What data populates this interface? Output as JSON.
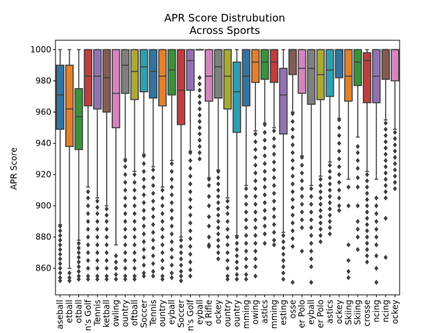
{
  "chart_data": {
    "type": "box",
    "title": [
      "APR Score Distrubution",
      "Across Sports"
    ],
    "xlabel": "",
    "ylabel": "APR Score",
    "ylim": [
      843,
      1006
    ],
    "yticks": [
      860,
      880,
      900,
      920,
      940,
      960,
      980,
      1000
    ],
    "grid": false,
    "categories": [
      {
        "label": "aseball",
        "color": "#3274a1",
        "q1": 949,
        "median": 971,
        "q3": 990,
        "whisker_low": 888,
        "whisker_high": 1000,
        "outliers": [
          887,
          884,
          881,
          878,
          875,
          872,
          869,
          866,
          863,
          860,
          857,
          854,
          852
        ]
      },
      {
        "label": "etball",
        "color": "#e1812c",
        "q1": 938,
        "median": 962,
        "q3": 990,
        "whisker_low": 860,
        "whisker_high": 1000,
        "outliers": [
          857,
          854,
          852
        ]
      },
      {
        "label": "otball",
        "color": "#3a923a",
        "q1": 936,
        "median": 957,
        "q3": 975,
        "whisker_low": 878,
        "whisker_high": 1000,
        "outliers": [
          876,
          873,
          870,
          867,
          864,
          861,
          858,
          855,
          853
        ]
      },
      {
        "label": "n's Golf",
        "color": "#c03d3e",
        "q1": 964,
        "median": 983,
        "q3": 1000,
        "whisker_low": 912,
        "whisker_high": 1000,
        "outliers": [
          909,
          905,
          900,
          895,
          890,
          885,
          880,
          875,
          870,
          865,
          860,
          855,
          853
        ]
      },
      {
        "label": "Tennis",
        "color": "#9372b2",
        "q1": 962,
        "median": 983,
        "q3": 1000,
        "whisker_low": 905,
        "whisker_high": 1000,
        "outliers": [
          903,
          899,
          895,
          890,
          885,
          880,
          875,
          870,
          865,
          860,
          855,
          853
        ]
      },
      {
        "label": "ketball",
        "color": "#845b53",
        "q1": 960,
        "median": 982,
        "q3": 1000,
        "whisker_low": 900,
        "whisker_high": 1000,
        "outliers": [
          898,
          894,
          890,
          885,
          880,
          875,
          870,
          865,
          860,
          855,
          853
        ]
      },
      {
        "label": "owling",
        "color": "#d684bd",
        "q1": 950,
        "median": 972,
        "q3": 1000,
        "whisker_low": 875,
        "whisker_high": 1000,
        "outliers": [
          868,
          864,
          860,
          856,
          853
        ]
      },
      {
        "label": "ountry",
        "color": "#7f7f7f",
        "q1": 972,
        "median": 990,
        "q3": 1000,
        "whisker_low": 930,
        "whisker_high": 1000,
        "outliers": [
          929,
          925,
          920,
          915,
          910,
          905,
          900,
          895,
          890,
          885,
          880,
          875,
          870,
          865,
          860,
          855,
          853
        ]
      },
      {
        "label": "oftball",
        "color": "#a9aa35",
        "q1": 968,
        "median": 986,
        "q3": 1000,
        "whisker_low": 922,
        "whisker_high": 1000,
        "outliers": [
          920,
          915,
          910,
          905,
          900,
          895,
          890,
          885,
          880,
          875,
          870,
          865,
          860,
          855,
          853
        ]
      },
      {
        "label": "Soccer",
        "color": "#2e9fb0",
        "q1": 973,
        "median": 989,
        "q3": 1000,
        "whisker_low": 933,
        "whisker_high": 1000,
        "outliers": [
          932,
          927,
          922,
          917,
          912,
          907,
          902,
          897,
          892,
          887,
          882,
          877,
          872,
          867,
          862,
          857,
          855
        ]
      },
      {
        "label": "Tennis",
        "color": "#3274a1",
        "q1": 969,
        "median": 986,
        "q3": 1000,
        "whisker_low": 925,
        "whisker_high": 1000,
        "outliers": [
          923,
          918,
          913,
          908,
          903,
          898,
          893,
          888,
          883,
          878,
          873,
          868,
          863,
          858,
          855
        ]
      },
      {
        "label": "ountry",
        "color": "#e1812c",
        "q1": 964,
        "median": 983,
        "q3": 1000,
        "whisker_low": 912,
        "whisker_high": 1000,
        "outliers": [
          910,
          905,
          900,
          895,
          890,
          885,
          880,
          875,
          870,
          865,
          860,
          855,
          853
        ]
      },
      {
        "label": "eyball",
        "color": "#3a923a",
        "q1": 971,
        "median": 987,
        "q3": 1000,
        "whisker_low": 929,
        "whisker_high": 1000,
        "outliers": [
          927,
          922,
          917,
          912,
          907,
          902,
          897,
          892,
          887,
          882,
          877,
          872,
          867,
          862,
          857,
          854
        ]
      },
      {
        "label": "Soccer",
        "color": "#c03d3e",
        "q1": 952,
        "median": 974,
        "q3": 1000,
        "whisker_low": 880,
        "whisker_high": 1000,
        "outliers": [
          878,
          874,
          870,
          866,
          862,
          858,
          855,
          852
        ]
      },
      {
        "label": "n's Golf",
        "color": "#9372b2",
        "q1": 974,
        "median": 993,
        "q3": 1000,
        "whisker_low": 935,
        "whisker_high": 1000,
        "outliers": [
          934,
          929,
          924,
          919,
          914,
          909,
          904,
          899,
          894,
          889,
          884,
          879,
          874,
          869,
          864,
          859,
          855
        ]
      },
      {
        "label": "eyball",
        "color": "#845b53",
        "q1": 1000,
        "median": 1000,
        "q3": 1000,
        "whisker_low": 1000,
        "whisker_high": 1000,
        "outliers": [
          982,
          978,
          974,
          970,
          966,
          962,
          958,
          954,
          950,
          946,
          942,
          938,
          934,
          930
        ]
      },
      {
        "label": "d Rifle",
        "color": "#d684bd",
        "q1": 967,
        "median": 983,
        "q3": 1000,
        "whisker_low": 918,
        "whisker_high": 1000,
        "outliers": [
          917,
          913,
          906,
          900,
          893,
          887,
          880,
          875,
          874
        ]
      },
      {
        "label": "ockey",
        "color": "#7f7f7f",
        "q1": 969,
        "median": 989,
        "q3": 1000,
        "whisker_low": 923,
        "whisker_high": 1000,
        "outliers": [
          922,
          918,
          914,
          910,
          906,
          902,
          898,
          894,
          890,
          886,
          882,
          878,
          874,
          870,
          866
        ]
      },
      {
        "label": "ountry",
        "color": "#a9aa35",
        "q1": 962,
        "median": 983,
        "q3": 1000,
        "whisker_low": 905,
        "whisker_high": 1000,
        "outliers": [
          903,
          899,
          895,
          890,
          885,
          880,
          875,
          870,
          865,
          860,
          855,
          853
        ]
      },
      {
        "label": "ountry",
        "color": "#2e9fb0",
        "q1": 947,
        "median": 973,
        "q3": 992,
        "whisker_low": 881,
        "whisker_high": 1000,
        "outliers": [
          880,
          876,
          872,
          868,
          864,
          860,
          856,
          853
        ]
      },
      {
        "label": "mming",
        "color": "#3274a1",
        "q1": 964,
        "median": 983,
        "q3": 1000,
        "whisker_low": 913,
        "whisker_high": 1000,
        "outliers": [
          911,
          906,
          901,
          896,
          891,
          886,
          881,
          876,
          871,
          866,
          861,
          856,
          853
        ]
      },
      {
        "label": "owing",
        "color": "#e1812c",
        "q1": 979,
        "median": 992,
        "q3": 1000,
        "whisker_low": 948,
        "whisker_high": 1000,
        "outliers": [
          946,
          941,
          936,
          931,
          926,
          921,
          916,
          911,
          906,
          901,
          896,
          891,
          886,
          881,
          876,
          871,
          866,
          861,
          855
        ]
      },
      {
        "label": "astics",
        "color": "#3a923a",
        "q1": 981,
        "median": 992,
        "q3": 1000,
        "whisker_low": 953,
        "whisker_high": 1000,
        "outliers": [
          952,
          947,
          942,
          937,
          932,
          927,
          922,
          917,
          912,
          907,
          902,
          897,
          892,
          887,
          882,
          876
        ]
      },
      {
        "label": "mming",
        "color": "#c03d3e",
        "q1": 979,
        "median": 992,
        "q3": 1000,
        "whisker_low": 950,
        "whisker_high": 1000,
        "outliers": [
          948,
          943,
          938,
          933,
          928,
          923,
          918,
          913,
          908,
          903,
          898,
          893,
          888,
          883,
          878,
          875
        ]
      },
      {
        "label": "esting",
        "color": "#9372b2",
        "q1": 946,
        "median": 971,
        "q3": 988,
        "whisker_low": 883,
        "whisker_high": 1000,
        "outliers": [
          881,
          877,
          873,
          869,
          865,
          861,
          857,
          853
        ]
      },
      {
        "label": "osse",
        "color": "#845b53",
        "q1": 984,
        "median": 1000,
        "q3": 1000,
        "whisker_low": 960,
        "whisker_high": 1000,
        "outliers": [
          959,
          954,
          949,
          944,
          939,
          934,
          929,
          924,
          919,
          914,
          909,
          904,
          899,
          894,
          889,
          884,
          879,
          874,
          851
        ]
      },
      {
        "label": "er Polo",
        "color": "#d684bd",
        "q1": 972,
        "median": 988,
        "q3": 1000,
        "whisker_low": 932,
        "whisker_high": 1000,
        "outliers": [
          931,
          926,
          921,
          916,
          911,
          906,
          901,
          896,
          891,
          886,
          871
        ]
      },
      {
        "label": "eyball",
        "color": "#7f7f7f",
        "q1": 965,
        "median": 988,
        "q3": 1000,
        "whisker_low": 913,
        "whisker_high": 1000,
        "outliers": [
          911,
          906,
          901,
          896,
          891,
          886,
          881,
          876,
          871,
          866,
          861,
          851
        ]
      },
      {
        "label": "er Polo",
        "color": "#a9aa35",
        "q1": 968,
        "median": 984,
        "q3": 1000,
        "whisker_low": 919,
        "whisker_high": 1000,
        "outliers": [
          917,
          913,
          909,
          905,
          901,
          897,
          893,
          889,
          885,
          881,
          877
        ]
      },
      {
        "label": "astics",
        "color": "#2e9fb0",
        "q1": 970,
        "median": 987,
        "q3": 1000,
        "whisker_low": 928,
        "whisker_high": 1000,
        "outliers": [
          926,
          922,
          918,
          914,
          910,
          906,
          902,
          898,
          894,
          890,
          886,
          882
        ]
      },
      {
        "label": "ockey",
        "color": "#3274a1",
        "q1": 982,
        "median": 1000,
        "q3": 1000,
        "whisker_low": 956,
        "whisker_high": 1000,
        "outliers": [
          955,
          950,
          945,
          940,
          935,
          930,
          925,
          920,
          915,
          910,
          905,
          900,
          897
        ]
      },
      {
        "label": "Skiing",
        "color": "#e1812c",
        "q1": 967,
        "median": 983,
        "q3": 1000,
        "whisker_low": 917,
        "whisker_high": 1000,
        "outliers": [
          912,
          900,
          875,
          865,
          858,
          854
        ]
      },
      {
        "label": "Skiing",
        "color": "#3a923a",
        "q1": 977,
        "median": 992,
        "q3": 1000,
        "whisker_low": 944,
        "whisker_high": 1000,
        "outliers": [
          938,
          934,
          929,
          924,
          918,
          912,
          900,
          890,
          885,
          880,
          872
        ]
      },
      {
        "label": "crosse",
        "color": "#c03d3e",
        "q1": 966,
        "median": 993,
        "q3": 998,
        "whisker_low": 922,
        "whisker_high": 1000,
        "outliers": [
          920,
          916,
          912,
          908,
          904,
          900,
          896,
          892,
          888,
          884,
          880,
          876,
          872,
          868,
          864
        ]
      },
      {
        "label": "ncing",
        "color": "#9372b2",
        "q1": 966,
        "median": 983,
        "q3": 1000,
        "whisker_low": 917,
        "whisker_high": 1000,
        "outliers": [
          905,
          900,
          895,
          890,
          885,
          880,
          875,
          868,
          860,
          851
        ]
      },
      {
        "label": "ncing",
        "color": "#845b53",
        "q1": 981,
        "median": 1000,
        "q3": 1000,
        "whisker_low": 955,
        "whisker_high": 1000,
        "outliers": [
          953,
          949,
          945,
          941,
          937,
          933,
          929,
          925,
          921,
          917,
          913,
          909,
          905,
          892,
          867
        ]
      },
      {
        "label": "ockey",
        "color": "#d684bd",
        "q1": 980,
        "median": 1000,
        "q3": 1000,
        "whisker_low": 949,
        "whisker_high": 1000,
        "outliers": [
          947,
          943,
          939,
          935,
          931,
          927,
          923,
          919,
          915,
          911
        ]
      }
    ]
  }
}
